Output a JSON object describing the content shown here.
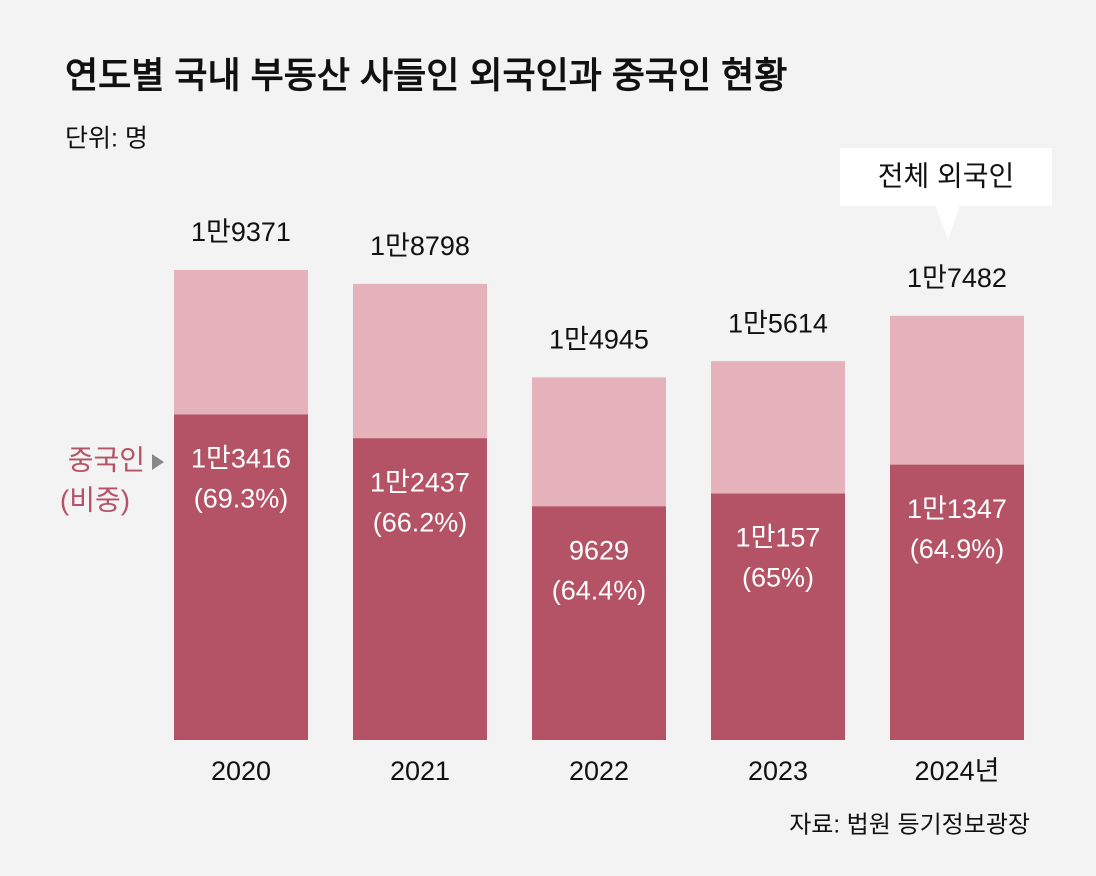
{
  "chart_data": {
    "type": "bar",
    "title": "연도별 국내 부동산 사들인 외국인과 중국인 현황",
    "subtitle": "단위: 명",
    "source": "자료: 법원 등기정보광장",
    "categories": [
      "2020",
      "2021",
      "2022",
      "2023",
      "2024년"
    ],
    "series": [
      {
        "name": "전체 외국인",
        "color": "#e5b1ba",
        "values": [
          19371,
          18798,
          14945,
          15614,
          17482
        ],
        "value_labels": [
          "1만9371",
          "1만8798",
          "1만4945",
          "1만5614",
          "1만7482"
        ]
      },
      {
        "name": "중국인",
        "color": "#b55366",
        "values": [
          13416,
          12437,
          9629,
          10157,
          11347
        ],
        "value_labels": [
          "1만3416",
          "1만2437",
          "9629",
          "1만157",
          "1만1347"
        ],
        "share_name": "(비중)",
        "shares": [
          69.3,
          66.2,
          64.4,
          65,
          64.9
        ],
        "share_labels": [
          "(69.3%)",
          "(66.2%)",
          "(64.4%)",
          "(65%)",
          "(64.9%)"
        ]
      }
    ]
  }
}
